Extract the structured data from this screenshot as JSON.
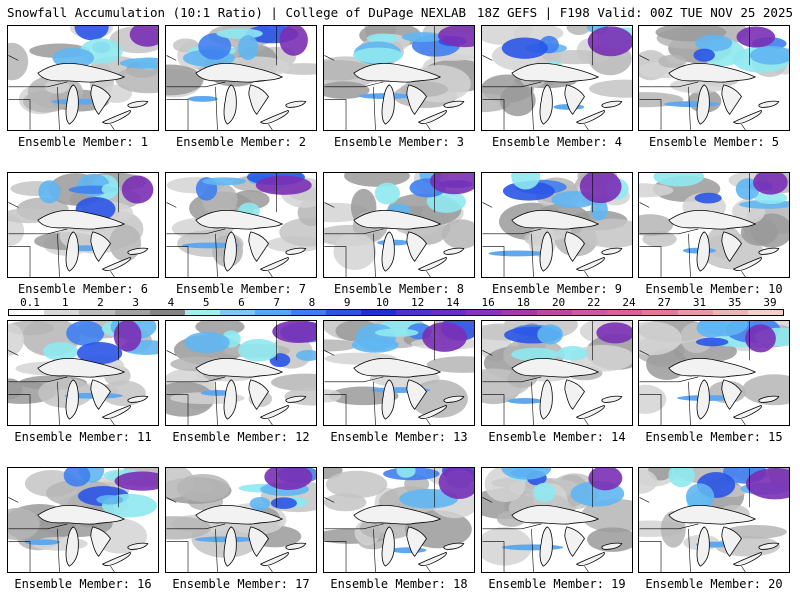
{
  "header": {
    "title": "Snowfall Accumulation (10:1 Ratio) | College of DuPage NEXLAB",
    "run_info": "18Z GEFS | F198 Valid: 00Z TUE NOV 25 2025"
  },
  "panels": [
    {
      "label": "Ensemble Member: 1"
    },
    {
      "label": "Ensemble Member: 2"
    },
    {
      "label": "Ensemble Member: 3"
    },
    {
      "label": "Ensemble Member: 4"
    },
    {
      "label": "Ensemble Member: 5"
    },
    {
      "label": "Ensemble Member: 6"
    },
    {
      "label": "Ensemble Member: 7"
    },
    {
      "label": "Ensemble Member: 8"
    },
    {
      "label": "Ensemble Member: 9"
    },
    {
      "label": "Ensemble Member: 10"
    },
    {
      "label": "Ensemble Member: 11"
    },
    {
      "label": "Ensemble Member: 12"
    },
    {
      "label": "Ensemble Member: 13"
    },
    {
      "label": "Ensemble Member: 14"
    },
    {
      "label": "Ensemble Member: 15"
    },
    {
      "label": "Ensemble Member: 16"
    },
    {
      "label": "Ensemble Member: 17"
    },
    {
      "label": "Ensemble Member: 18"
    },
    {
      "label": "Ensemble Member: 19"
    },
    {
      "label": "Ensemble Member: 20"
    }
  ],
  "colorbar": {
    "labels": [
      "0.1",
      "1",
      "2",
      "3",
      "4",
      "5",
      "6",
      "7",
      "8",
      "9",
      "10",
      "12",
      "14",
      "16",
      "18",
      "20",
      "22",
      "24",
      "27",
      "31",
      "35",
      "39"
    ],
    "colors": [
      "#ffffff",
      "#d9d9d9",
      "#bdbdbd",
      "#a0a0a0",
      "#858585",
      "#9ff0f0",
      "#7fc8f5",
      "#5aa8f0",
      "#3f7ff0",
      "#2a55e6",
      "#1f2fd6",
      "#5030d0",
      "#6a2ec0",
      "#8a33b8",
      "#a13aa8",
      "#b74aa6",
      "#c95aa6",
      "#d6619b",
      "#e07a9a",
      "#e898a8",
      "#efb5b5",
      "#f4d0c8"
    ]
  }
}
